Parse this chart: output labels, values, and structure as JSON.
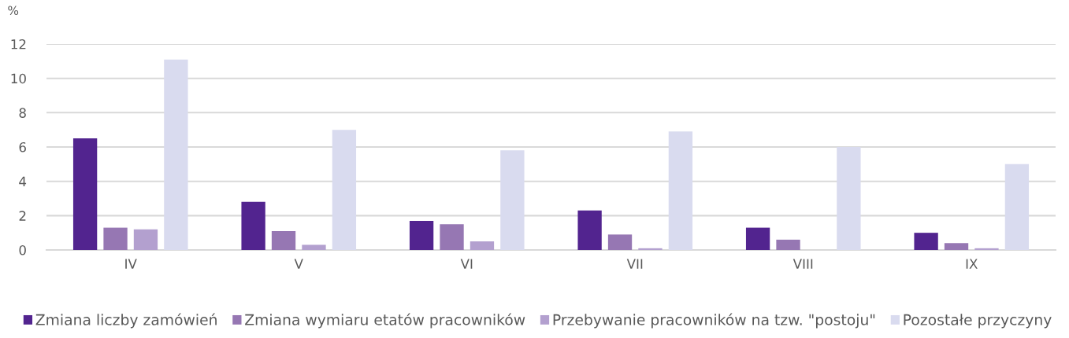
{
  "chart_data": {
    "type": "bar",
    "ylabel": "%",
    "categories": [
      "IV",
      "V",
      "VI",
      "VII",
      "VIII",
      "IX"
    ],
    "series": [
      {
        "name": "Zmiana liczby zamówień",
        "color": "#52248f",
        "values": [
          6.5,
          2.8,
          1.7,
          2.3,
          1.3,
          1.0
        ]
      },
      {
        "name": "Zmiana wymiaru etatów pracowników",
        "color": "#9677b3",
        "values": [
          1.3,
          1.1,
          1.5,
          0.9,
          0.6,
          0.4
        ]
      },
      {
        "name": "Przebywanie pracowników na tzw. \"postoju\"",
        "color": "#b3a0cf",
        "values": [
          1.2,
          0.3,
          0.5,
          0.1,
          0.0,
          0.1
        ]
      },
      {
        "name": "Pozostałe przyczyny",
        "color": "#d9dbef",
        "values": [
          11.1,
          7.0,
          5.8,
          6.9,
          6.0,
          5.0
        ]
      }
    ],
    "ylim": [
      0,
      12
    ],
    "yticks": [
      0,
      2,
      4,
      6,
      8,
      10,
      12
    ],
    "grid": "y",
    "legend": "bottom"
  }
}
